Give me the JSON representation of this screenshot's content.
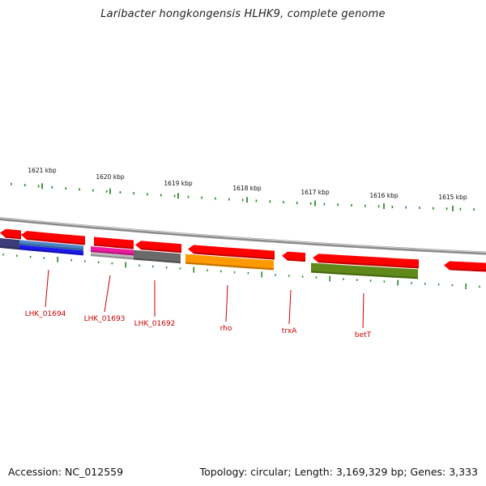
{
  "header": {
    "title": "Laribacter hongkongensis HLHK9, complete genome"
  },
  "footer": {
    "accession": "Accession: NC_012559",
    "summary": "Topology: circular; Length: 3,169,329 bp; Genes: 3,333"
  },
  "scale": {
    "labels": [
      "1621 kbp",
      "1620 kbp",
      "1619 kbp",
      "1618 kbp",
      "1617 kbp",
      "1616 kbp",
      "1615 kbp"
    ]
  },
  "colors": {
    "forward_strand": "#ff0000",
    "backbone": "#8a8a8a",
    "tick": "#2a8a2a",
    "label": "#cc0000"
  },
  "genes": [
    {
      "name": "LHK_01694",
      "color": "#1a1aee"
    },
    {
      "name": "LHK_01693",
      "color": "#ee1aa0"
    },
    {
      "name": "LHK_01692",
      "color": "#6a6a6a"
    },
    {
      "name": "rho",
      "color": "#ff9900"
    },
    {
      "name": "trxA",
      "color": "#ff0000"
    },
    {
      "name": "betT",
      "color": "#5f8a1a"
    }
  ]
}
